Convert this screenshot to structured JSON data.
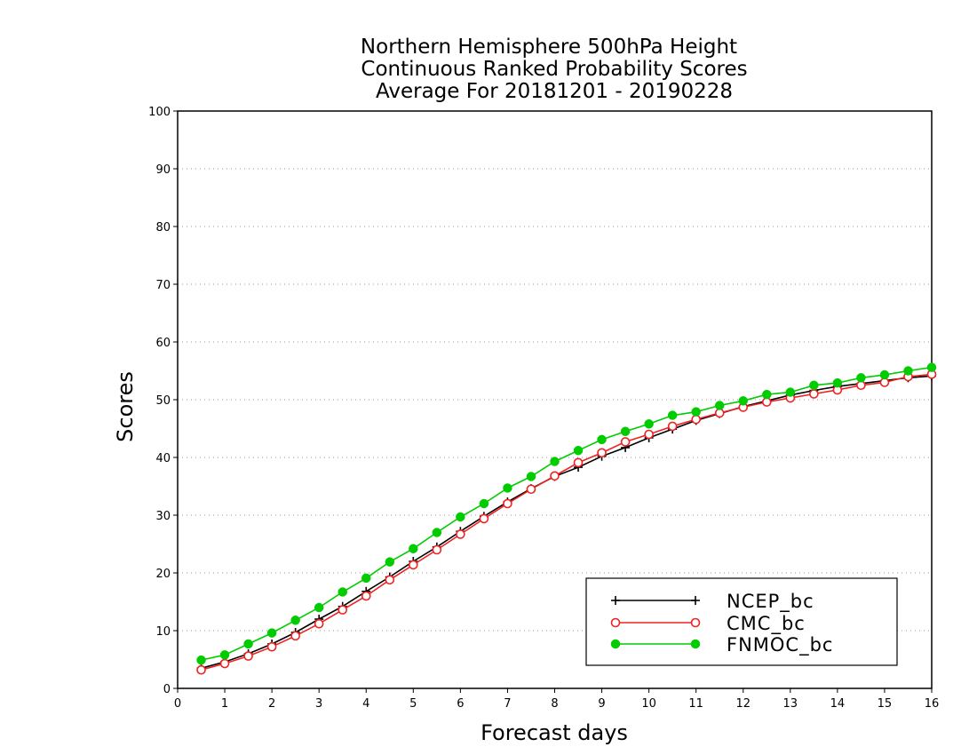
{
  "chart_data": {
    "type": "line",
    "title": [
      "Northern Hemisphere 500hPa Height",
      "Continuous Ranked Probability Scores",
      "Average For 20181201 - 20190228"
    ],
    "xlabel": "Forecast days",
    "ylabel": "Scores",
    "xlim": [
      0,
      16
    ],
    "ylim": [
      0,
      100
    ],
    "xticks": [
      "0",
      "1",
      "2",
      "3",
      "4",
      "5",
      "6",
      "7",
      "8",
      "9",
      "10",
      "11",
      "12",
      "13",
      "14",
      "15",
      "16"
    ],
    "yticks": [
      "0",
      "10",
      "20",
      "30",
      "40",
      "50",
      "60",
      "70",
      "80",
      "90",
      "100"
    ],
    "grid": "horizontal dotted",
    "legend_position": "bottom-right",
    "x": [
      0.5,
      1,
      1.5,
      2,
      2.5,
      3,
      3.5,
      4,
      4.5,
      5,
      5.5,
      6,
      6.5,
      7,
      7.5,
      8,
      8.5,
      9,
      9.5,
      10,
      10.5,
      11,
      11.5,
      12,
      12.5,
      13,
      13.5,
      14,
      14.5,
      15,
      15.5,
      16
    ],
    "series": [
      {
        "name": "NCEP_bc",
        "color": "#000000",
        "marker": "plus",
        "values": [
          3.5,
          4.6,
          6.0,
          7.7,
          9.7,
          12.0,
          14.2,
          16.8,
          19.3,
          22.0,
          24.5,
          27.2,
          29.8,
          32.3,
          34.6,
          36.7,
          38.3,
          40.2,
          41.7,
          43.4,
          44.9,
          46.4,
          47.6,
          48.8,
          49.8,
          50.8,
          51.6,
          52.3,
          52.8,
          53.3,
          53.8,
          54.1
        ]
      },
      {
        "name": "CMC_bc",
        "color": "#ee2222",
        "marker": "open-circle",
        "values": [
          3.2,
          4.3,
          5.6,
          7.2,
          9.1,
          11.2,
          13.6,
          16.0,
          18.8,
          21.4,
          24.0,
          26.7,
          29.4,
          32.0,
          34.5,
          36.8,
          39.1,
          40.8,
          42.7,
          44.0,
          45.4,
          46.6,
          47.7,
          48.7,
          49.6,
          50.3,
          51.0,
          51.7,
          52.5,
          53.0,
          54.0,
          54.4
        ]
      },
      {
        "name": "FNMOC_bc",
        "color": "#00cc00",
        "marker": "filled-circle",
        "values": [
          4.9,
          5.8,
          7.7,
          9.6,
          11.8,
          14.0,
          16.7,
          19.1,
          21.9,
          24.2,
          27.0,
          29.7,
          32.0,
          34.7,
          36.7,
          39.3,
          41.2,
          43.1,
          44.5,
          45.8,
          47.3,
          47.9,
          49.0,
          49.8,
          50.9,
          51.3,
          52.5,
          52.9,
          53.8,
          54.3,
          55.0,
          55.6
        ]
      }
    ]
  }
}
